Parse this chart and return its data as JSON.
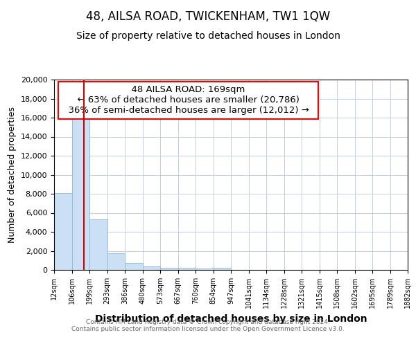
{
  "title": "48, AILSA ROAD, TWICKENHAM, TW1 1QW",
  "subtitle": "Size of property relative to detached houses in London",
  "xlabel": "Distribution of detached houses by size in London",
  "ylabel": "Number of detached properties",
  "footer_line1": "Contains HM Land Registry data © Crown copyright and database right 2024.",
  "footer_line2": "Contains public sector information licensed under the Open Government Licence v3.0.",
  "annotation_line1": "48 AILSA ROAD: 169sqm",
  "annotation_line2": "← 63% of detached houses are smaller (20,786)",
  "annotation_line3": "36% of semi-detached houses are larger (12,012) →",
  "bar_color": "#cce0f5",
  "bar_edge_color": "#90b8d8",
  "redline_color": "#cc0000",
  "redline_x": 169,
  "categories": [
    "12sqm",
    "106sqm",
    "199sqm",
    "293sqm",
    "386sqm",
    "480sqm",
    "573sqm",
    "667sqm",
    "760sqm",
    "854sqm",
    "947sqm",
    "1041sqm",
    "1134sqm",
    "1228sqm",
    "1321sqm",
    "1415sqm",
    "1508sqm",
    "1602sqm",
    "1695sqm",
    "1789sqm",
    "1882sqm"
  ],
  "bin_edges": [
    12,
    106,
    199,
    293,
    386,
    480,
    573,
    667,
    760,
    854,
    947,
    1041,
    1134,
    1228,
    1321,
    1415,
    1508,
    1602,
    1695,
    1789,
    1882
  ],
  "values": [
    8100,
    16600,
    5300,
    1750,
    750,
    350,
    230,
    200,
    175,
    230,
    0,
    0,
    0,
    0,
    0,
    0,
    0,
    0,
    0,
    0
  ],
  "ylim": [
    0,
    20000
  ],
  "yticks": [
    0,
    2000,
    4000,
    6000,
    8000,
    10000,
    12000,
    14000,
    16000,
    18000,
    20000
  ],
  "background_color": "#ffffff",
  "grid_color": "#c0d0e0",
  "title_fontsize": 12,
  "subtitle_fontsize": 10,
  "annotation_fontsize": 9.5,
  "xlabel_fontsize": 10,
  "ylabel_fontsize": 9
}
